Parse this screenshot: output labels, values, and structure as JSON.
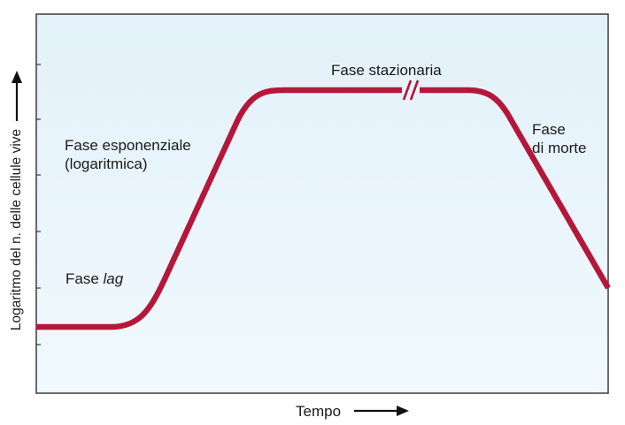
{
  "axes": {
    "x_label": "Tempo",
    "y_label": "Logaritmo del n. delle cellule vive"
  },
  "phases": {
    "lag": {
      "label_prefix": "Fase",
      "label_emphasis": "lag"
    },
    "exponential": {
      "line1": "Fase esponenziale",
      "line2": "(logaritmica)"
    },
    "stationary": {
      "label": "Fase stazionaria"
    },
    "death": {
      "line1": "Fase",
      "line2": "di morte"
    }
  },
  "colors": {
    "curve": "#b5173a",
    "plot_background_top": "#e6f3fb",
    "plot_background_bottom": "#eef8fd",
    "frame": "#3a3a3a"
  }
}
